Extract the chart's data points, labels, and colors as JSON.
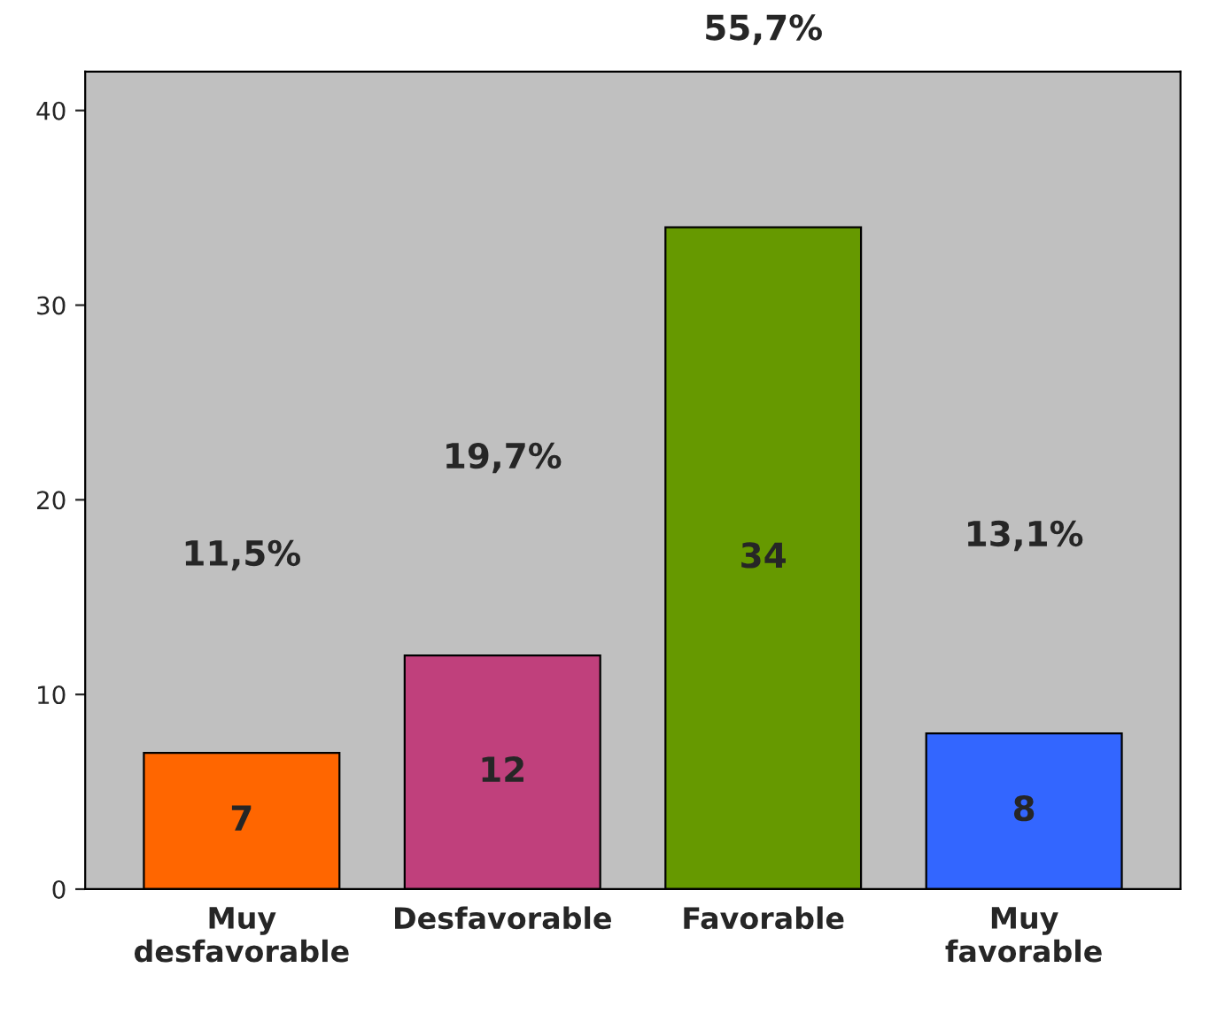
{
  "chart_data": {
    "type": "bar",
    "categories": [
      "Muy\ndesfavorable",
      "Desfavorable",
      "Favorable",
      "Muy\nfavorable"
    ],
    "values": [
      7,
      12,
      34,
      8
    ],
    "colors": [
      "#ff6600",
      "#c0407c",
      "#669900",
      "#3366ff"
    ],
    "data_labels": true,
    "annotations": [
      "11,5%",
      "19,7%",
      "55,7%",
      "13,1%"
    ],
    "ylim": [
      0,
      42
    ],
    "yticks": [
      0,
      10,
      20,
      30,
      40
    ],
    "grid": false
  }
}
